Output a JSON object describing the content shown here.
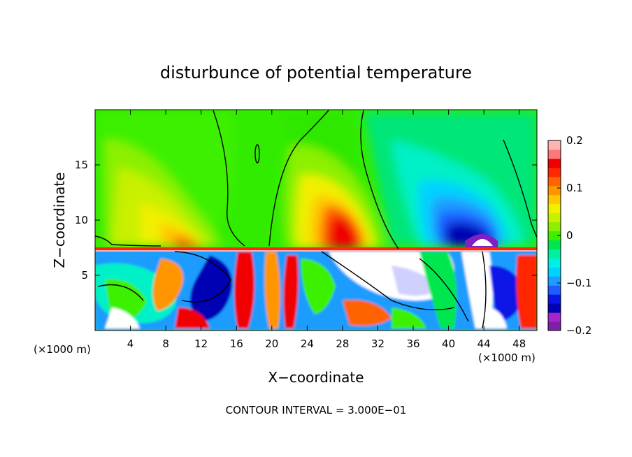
{
  "chart_data": {
    "type": "heatmap",
    "title": "disturbunce of potential temperature",
    "xlabel": "X−coordinate",
    "ylabel": "Z−coordinate",
    "x_unit_left": "(×1000 m)",
    "x_unit_right": "(×1000 m)",
    "footer": "CONTOUR INTERVAL = 3.000E−01",
    "xlim": [
      0,
      50
    ],
    "ylim": [
      0,
      20
    ],
    "x_ticks": [
      4,
      8,
      12,
      16,
      20,
      24,
      28,
      32,
      36,
      40,
      44,
      48
    ],
    "x_tick_labels": [
      "4",
      "8",
      "12",
      "16",
      "20",
      "24",
      "28",
      "32",
      "36",
      "40",
      "44",
      "48"
    ],
    "y_ticks": [
      5,
      10,
      15
    ],
    "y_tick_labels": [
      "5",
      "10",
      "15"
    ],
    "colorbar": {
      "range": [
        -0.2,
        0.2
      ],
      "ticks": [
        0.2,
        0.1,
        0,
        -0.1,
        -0.2
      ],
      "tick_labels": [
        "0.2",
        "0.1",
        "0",
        "−0.1",
        "−0.2"
      ],
      "colors": [
        "#7e1fa8",
        "#a624c8",
        "#0000b4",
        "#0a14e6",
        "#1e5cff",
        "#1e9cff",
        "#00d2ff",
        "#00f0e6",
        "#00f0a0",
        "#00e650",
        "#3cf000",
        "#8cf000",
        "#c8f000",
        "#f0f000",
        "#ffc800",
        "#ff9600",
        "#ff6400",
        "#ff2800",
        "#f00000",
        "#ff7878",
        "#ffb4b4"
      ]
    }
  }
}
